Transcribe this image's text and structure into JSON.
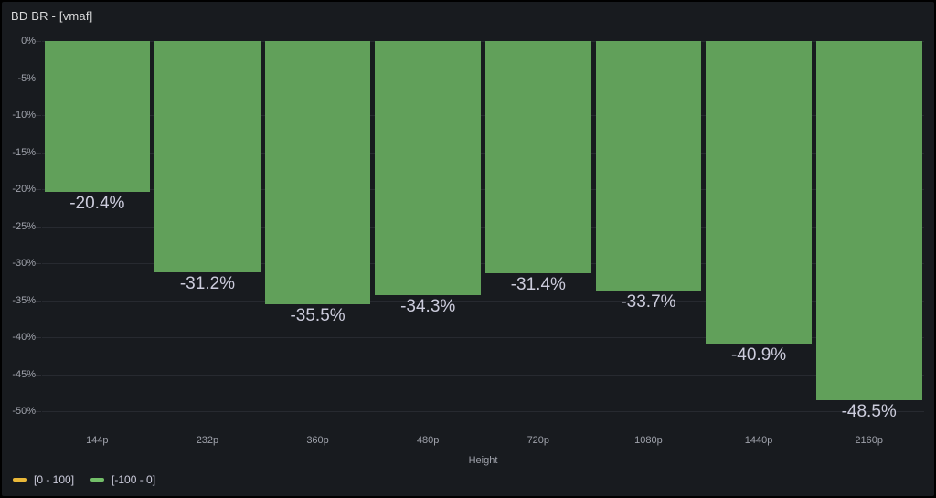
{
  "panel": {
    "title": "BD BR - [vmaf]"
  },
  "chart_data": {
    "type": "bar",
    "title": "BD BR - [vmaf]",
    "categories": [
      "144p",
      "232p",
      "360p",
      "480p",
      "720p",
      "1080p",
      "1440p",
      "2160p"
    ],
    "values": [
      -20.4,
      -31.2,
      -35.5,
      -34.3,
      -31.4,
      -33.7,
      -40.9,
      -48.5
    ],
    "value_labels": [
      "-20.4%",
      "-31.2%",
      "-35.5%",
      "-34.3%",
      "-31.4%",
      "-33.7%",
      "-40.9%",
      "-48.5%"
    ],
    "xlabel": "Height",
    "ylabel": "",
    "ylim": [
      -50,
      0
    ],
    "yticks": [
      "0%",
      "-5%",
      "-10%",
      "-15%",
      "-20%",
      "-25%",
      "-30%",
      "-35%",
      "-40%",
      "-45%",
      "-50%"
    ],
    "grid": true,
    "legend_position": "bottom-left"
  },
  "legend": {
    "items": [
      {
        "label": "[0 - 100]",
        "color": "#eab839"
      },
      {
        "label": "[-100 - 0]",
        "color": "#73bf69"
      }
    ]
  },
  "colors": {
    "panel_bg": "#181b1f",
    "bar_fill": "#61a05a",
    "grid_line": "rgba(204,204,220,0.09)",
    "axis_text": "#9fa2ab",
    "value_label_text": "#ccccdc",
    "title_text": "#d8d9da"
  }
}
